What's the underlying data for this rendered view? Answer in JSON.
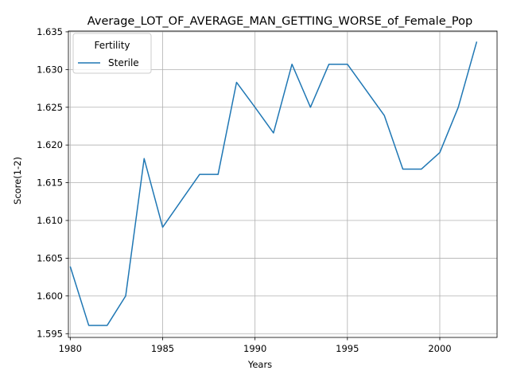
{
  "chart_data": {
    "type": "line",
    "title": "Average_LOT_OF_AVERAGE_MAN_GETTING_WORSE_of_Female_Pop",
    "xlabel": "Years",
    "ylabel": "Score(1-2)",
    "xlim": [
      1979.9,
      2003.1
    ],
    "ylim": [
      1.5945,
      1.6351
    ],
    "x_ticks": [
      1980,
      1985,
      1990,
      1995,
      2000
    ],
    "y_ticks": [
      1.595,
      1.6,
      1.605,
      1.61,
      1.615,
      1.62,
      1.625,
      1.63,
      1.635
    ],
    "y_tick_labels": [
      "1.595",
      "1.600",
      "1.605",
      "1.610",
      "1.615",
      "1.620",
      "1.625",
      "1.630",
      "1.635"
    ],
    "grid": true,
    "legend": {
      "title": "Fertility",
      "placement": "top-left"
    },
    "series": [
      {
        "name": "Sterile",
        "color": "#1f77b4",
        "x": [
          1980,
          1981,
          1982,
          1983,
          1984,
          1985,
          1986,
          1987,
          1988,
          1989,
          1990,
          1991,
          1992,
          1993,
          1994,
          1995,
          1996,
          1997,
          1998,
          1999,
          2000,
          2001,
          2002
        ],
        "y": [
          1.6039,
          1.5961,
          1.5961,
          1.6,
          1.6182,
          1.6091,
          1.6126,
          1.6161,
          1.6161,
          1.6283,
          1.625,
          1.6216,
          1.6307,
          1.625,
          1.6307,
          1.6307,
          1.6273,
          1.6239,
          1.6168,
          1.6168,
          1.619,
          1.625,
          1.6337
        ]
      }
    ]
  }
}
